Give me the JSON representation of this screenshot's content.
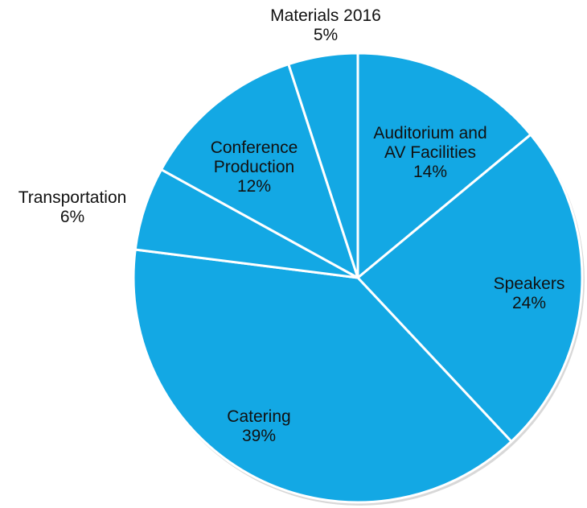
{
  "chart_data": {
    "type": "pie",
    "categories": [
      "Auditorium and\nAV Facilities",
      "Speakers",
      "Catering",
      "Transportation",
      "Conference\nProduction",
      "Materials 2016"
    ],
    "values": [
      14,
      24,
      39,
      6,
      12,
      5
    ],
    "value_labels": [
      "14%",
      "24%",
      "39%",
      "6%",
      "12%",
      "5%"
    ],
    "color": "#13a8e4"
  }
}
